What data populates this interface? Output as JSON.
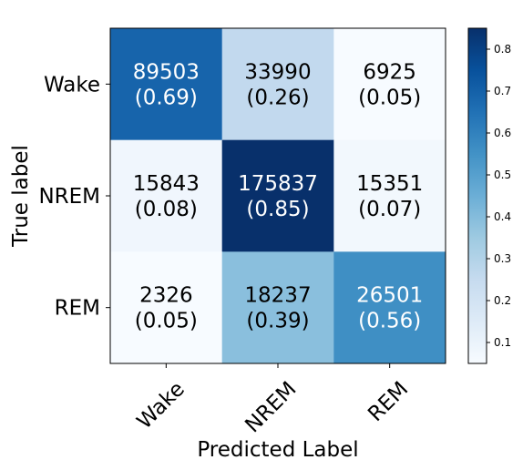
{
  "chart_data": {
    "type": "heatmap",
    "title": "",
    "xlabel": "Predicted Label",
    "ylabel": "True label",
    "row_labels": [
      "Wake",
      "NREM",
      "REM"
    ],
    "col_labels": [
      "Wake",
      "NREM",
      "REM"
    ],
    "counts": [
      [
        89503,
        33990,
        6925
      ],
      [
        15843,
        175837,
        15351
      ],
      [
        2326,
        18237,
        26501
      ]
    ],
    "fractions": [
      [
        0.69,
        0.26,
        0.05
      ],
      [
        0.08,
        0.85,
        0.07
      ],
      [
        0.05,
        0.39,
        0.56
      ]
    ],
    "cell_text": [
      [
        [
          "89503",
          "(0.69)"
        ],
        [
          "33990",
          "(0.26)"
        ],
        [
          "6925",
          "(0.05)"
        ]
      ],
      [
        [
          "15843",
          "(0.08)"
        ],
        [
          "175837",
          "(0.85)"
        ],
        [
          "15351",
          "(0.07)"
        ]
      ],
      [
        [
          "2326",
          "(0.05)"
        ],
        [
          "18237",
          "(0.39)"
        ],
        [
          "26501",
          "(0.56)"
        ]
      ]
    ],
    "colormap": "Blues",
    "colorbar": {
      "range": [
        0.05,
        0.85
      ],
      "ticks": [
        0.1,
        0.2,
        0.3,
        0.4,
        0.5,
        0.6,
        0.7,
        0.8
      ],
      "tick_labels": [
        "0.1",
        "0.2",
        "0.3",
        "0.4",
        "0.5",
        "0.6",
        "0.7",
        "0.8"
      ]
    }
  }
}
